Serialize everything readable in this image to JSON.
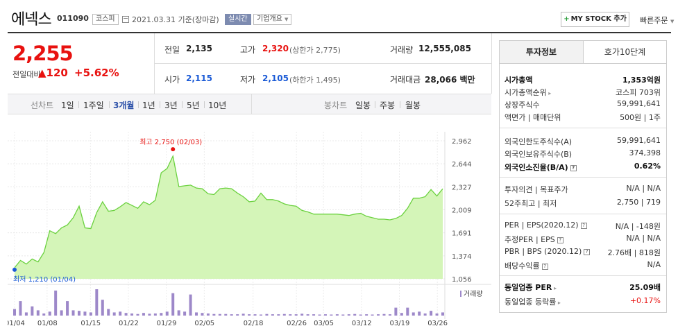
{
  "header": {
    "name": "에넥스",
    "code": "011090",
    "market": "코스피",
    "date": "2021.03.31 기준(장마감)",
    "realtime": "실시간",
    "company_info": "기업개요",
    "mystock_btn": "MY STOCK 추가",
    "quick_order": "빠른주문"
  },
  "price": {
    "current": "2,255",
    "change_label": "전일대비",
    "change": "▲120",
    "change_pct": "+5.62%"
  },
  "stats": {
    "prev_label": "전일",
    "prev": "2,135",
    "high_label": "고가",
    "high": "2,320",
    "upper_limit": "(상한가 2,775)",
    "volume_label": "거래량",
    "volume": "12,555,085",
    "open_label": "시가",
    "open": "2,115",
    "low_label": "저가",
    "low": "2,105",
    "lower_limit": "(하한가 1,495)",
    "amount_label": "거래대금",
    "amount": "28,066 백만"
  },
  "periods": {
    "label": "선차트",
    "items": [
      "1일",
      "1주일",
      "3개월",
      "1년",
      "3년",
      "5년",
      "10년"
    ],
    "active": "3개월",
    "candle_label": "봉차트",
    "candle_items": [
      "일봉",
      "주봉",
      "월봉"
    ]
  },
  "chart_data": {
    "type": "area",
    "y_ticks": [
      "2,962",
      "2,644",
      "2,327",
      "2,009",
      "1,691",
      "1,374",
      "1,056"
    ],
    "ylim": [
      1056,
      2962
    ],
    "x_ticks": [
      "01/04",
      "01/08",
      "01/15",
      "01/22",
      "01/29",
      "02/05",
      "02/18",
      "02/26",
      "03/05",
      "03/12",
      "03/19",
      "03/26"
    ],
    "high_label": "최고 2,750 (02/03)",
    "low_label": "최저 1,210 (01/04)",
    "volume_label": "거래량",
    "grid": true,
    "values": [
      1210,
      1310,
      1260,
      1330,
      1290,
      1420,
      1720,
      1680,
      1760,
      1800,
      1900,
      2060,
      1760,
      1750,
      1970,
      2120,
      1990,
      2000,
      2050,
      2110,
      2070,
      2030,
      2120,
      2080,
      2140,
      2520,
      2580,
      2750,
      2330,
      2340,
      2350,
      2310,
      2300,
      2230,
      2220,
      2300,
      2310,
      2300,
      2240,
      2190,
      2120,
      2130,
      2240,
      2150,
      2150,
      2130,
      2090,
      2070,
      2060,
      2000,
      1980,
      1950,
      1950,
      1950,
      1950,
      1950,
      1940,
      1930,
      1950,
      1960,
      1920,
      1900,
      1880,
      1880,
      1870,
      1890,
      1930,
      2030,
      2170,
      2170,
      2190,
      2290,
      2200,
      2300
    ],
    "volumes": [
      0.25,
      0.55,
      0.12,
      0.35,
      0.2,
      0.08,
      0.15,
      0.95,
      0.2,
      0.55,
      0.2,
      0.18,
      0.15,
      0.12,
      1.0,
      0.6,
      0.25,
      0.12,
      0.15,
      0.1,
      0.08,
      0.06,
      0.1,
      0.07,
      0.08,
      0.1,
      0.15,
      0.85,
      0.2,
      0.15,
      0.8,
      0.12,
      0.1,
      0.08,
      0.06,
      0.06,
      0.06,
      0.05,
      0.05,
      0.07,
      0.05,
      0.05,
      0.04,
      0.06,
      0.05,
      0.05,
      0.06,
      0.05,
      0.05,
      0.07,
      0.05,
      0.05,
      0.04,
      0.05,
      0.04,
      0.05,
      0.04,
      0.05,
      0.06,
      0.04,
      0.05,
      0.04,
      0.05,
      0.06,
      0.05,
      0.3,
      0.1,
      0.3,
      0.12,
      0.15,
      0.08,
      0.18,
      0.08,
      0.12
    ]
  },
  "right_panel": {
    "tabs": [
      "투자정보",
      "호가10단계"
    ],
    "rows": [
      {
        "label": "시가총액",
        "value": "1,353억원",
        "bold": true
      },
      {
        "label": "시가총액순위",
        "value": "코스피 703위",
        "arrow": true
      },
      {
        "label": "상장주식수",
        "value": "59,991,641"
      },
      {
        "label": "액면가 | 매매단위",
        "value": "500원 | 1주"
      },
      {
        "label": "외국인한도주식수(A)",
        "value": "59,991,641"
      },
      {
        "label": "외국인보유주식수(B)",
        "value": "374,398"
      },
      {
        "label": "외국인소진율(B/A)",
        "value": "0.62%",
        "bold": true,
        "qm": true
      },
      {
        "label": "투자의견 | 목표주가",
        "value": "N/A | N/A"
      },
      {
        "label": "52주최고 | 최저",
        "value": "2,750 | 719"
      },
      {
        "label": "PER | EPS(2020.12)",
        "value": "N/A | -148원",
        "qm": true
      },
      {
        "label": "추정PER | EPS",
        "value": "N/A | N/A",
        "qm": true
      },
      {
        "label": "PBR | BPS (2020.12)",
        "value": "2.76배 | 818원",
        "qm": true
      },
      {
        "label": "배당수익률",
        "value": "N/A",
        "qm": true
      },
      {
        "label": "동일업종 PER",
        "value": "25.09배",
        "bold": true,
        "arrow": true
      },
      {
        "label": "동일업종 등락률",
        "value": "+0.17%",
        "up": true,
        "arrow": true
      }
    ]
  },
  "colors": {
    "up": "#e8110f",
    "down": "#1a5ad6",
    "area_fill": "#d4f5b8",
    "area_line": "#6bd13f",
    "volume_bar": "#9d88c9"
  }
}
